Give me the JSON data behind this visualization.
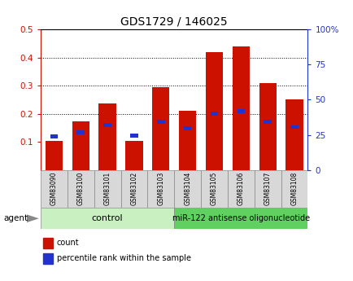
{
  "title": "GDS1729 / 146025",
  "categories": [
    "GSM83090",
    "GSM83100",
    "GSM83101",
    "GSM83102",
    "GSM83103",
    "GSM83104",
    "GSM83105",
    "GSM83106",
    "GSM83107",
    "GSM83108"
  ],
  "count_values": [
    0.105,
    0.172,
    0.237,
    0.105,
    0.295,
    0.21,
    0.42,
    0.44,
    0.31,
    0.252
  ],
  "percentile_values": [
    0.12,
    0.135,
    0.16,
    0.122,
    0.172,
    0.148,
    0.2,
    0.21,
    0.172,
    0.153
  ],
  "bar_color": "#cc1100",
  "percentile_color": "#2233cc",
  "bar_width": 0.65,
  "ylim_left": [
    0.0,
    0.5
  ],
  "ylim_right": [
    0.0,
    100
  ],
  "yticks_left": [
    0.1,
    0.2,
    0.3,
    0.4,
    0.5
  ],
  "ytick_labels_left": [
    "0.1",
    "0.2",
    "0.3",
    "0.4",
    "0.5"
  ],
  "yticks_right": [
    0,
    25,
    50,
    75,
    100
  ],
  "ytick_labels_right": [
    "0",
    "25",
    "50",
    "75",
    "100%"
  ],
  "left_axis_color": "#cc1100",
  "right_axis_color": "#2233cc",
  "group1_label": "control",
  "group2_label": "miR-122 antisense oligonucleotide",
  "group1_color": "#c8f0c0",
  "group2_color": "#60d060",
  "agent_label": "agent",
  "legend_count": "count",
  "legend_percentile": "percentile rank within the sample",
  "tick_label_bg": "#d8d8d8",
  "plot_bg": "#ffffff"
}
